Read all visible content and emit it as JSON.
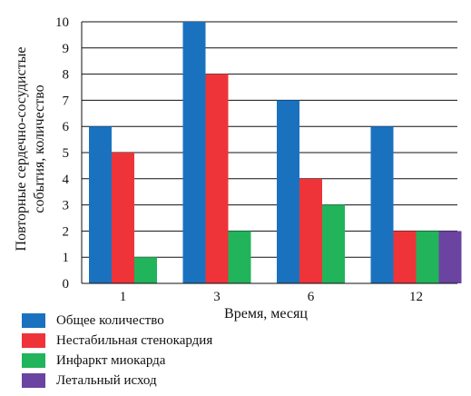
{
  "chart_data": {
    "type": "bar",
    "categories": [
      "1",
      "3",
      "6",
      "12"
    ],
    "series": [
      {
        "name": "Общее количество",
        "values": [
          6,
          10,
          7,
          6
        ],
        "color": "#1a72bf"
      },
      {
        "name": "Нестабильная стенокардия",
        "values": [
          5,
          8,
          4,
          2
        ],
        "color": "#ee3438"
      },
      {
        "name": "Инфаркт миокарда",
        "values": [
          1,
          2,
          3,
          2
        ],
        "color": "#21b45b"
      },
      {
        "name": "Летальный исход",
        "values": [
          null,
          null,
          null,
          2
        ],
        "color": "#6a44a0"
      }
    ],
    "xlabel": "Время, месяц",
    "ylabel_lines": [
      "Повторные сердечно-сосудистые",
      "события, количество"
    ],
    "ylim": [
      0,
      10
    ],
    "yticks": [
      "0",
      "1",
      "2",
      "3",
      "4",
      "5",
      "6",
      "7",
      "8",
      "9",
      "10"
    ],
    "grid": true,
    "legend_position": "bottom"
  }
}
